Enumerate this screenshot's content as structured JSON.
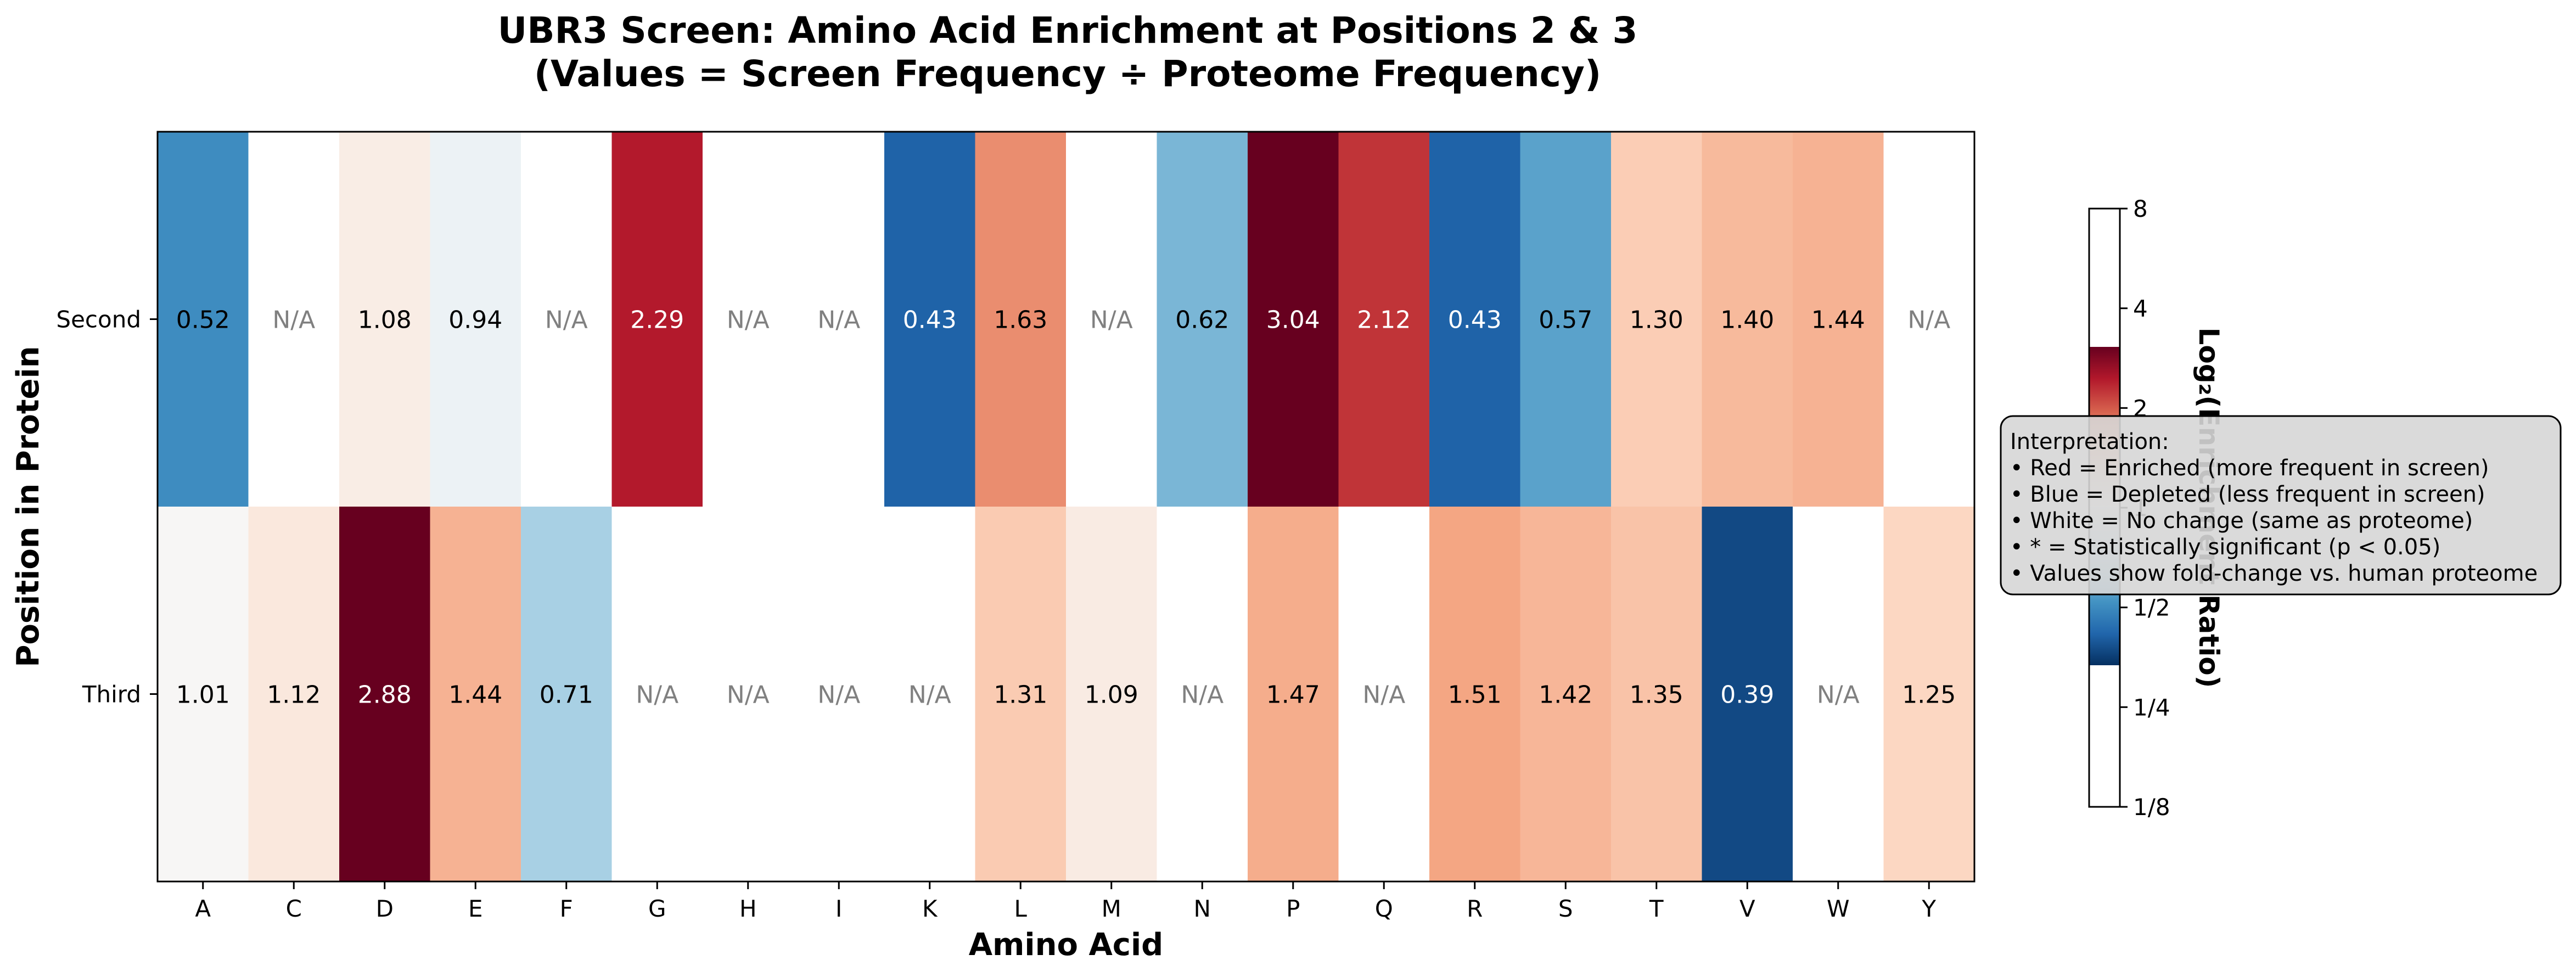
{
  "chart_data": {
    "type": "heatmap",
    "title_lines": [
      "UBR3 Screen: Amino Acid Enrichment at Positions 2 & 3",
      "(Values = Screen Frequency ÷ Proteome Frequency)"
    ],
    "xlabel": "Amino Acid",
    "ylabel": "Position in Protein",
    "columns": [
      "A",
      "C",
      "D",
      "E",
      "F",
      "G",
      "H",
      "I",
      "K",
      "L",
      "M",
      "N",
      "P",
      "Q",
      "R",
      "S",
      "T",
      "V",
      "W",
      "Y"
    ],
    "rows": [
      {
        "label": "Second",
        "values": [
          0.52,
          null,
          1.08,
          0.94,
          null,
          2.29,
          null,
          null,
          0.43,
          1.63,
          null,
          0.62,
          3.04,
          2.12,
          0.43,
          0.57,
          1.3,
          1.4,
          1.44,
          null
        ],
        "labels": [
          "0.52",
          "N/A",
          "1.08",
          "0.94",
          "N/A",
          "2.29",
          "N/A",
          "N/A",
          "0.43",
          "1.63",
          "N/A",
          "0.62",
          "3.04",
          "2.12",
          "0.43",
          "0.57",
          "1.30",
          "1.40",
          "1.44",
          "N/A"
        ]
      },
      {
        "label": "Third",
        "values": [
          1.01,
          1.12,
          2.88,
          1.44,
          0.71,
          null,
          null,
          null,
          null,
          1.31,
          1.09,
          null,
          1.47,
          null,
          1.51,
          1.42,
          1.35,
          0.39,
          null,
          1.25
        ],
        "labels": [
          "1.01",
          "1.12",
          "2.88",
          "1.44",
          "0.71",
          "N/A",
          "N/A",
          "N/A",
          "N/A",
          "1.31",
          "1.09",
          "N/A",
          "1.47",
          "N/A",
          "1.51",
          "1.42",
          "1.35",
          "0.39",
          "N/A",
          "1.25"
        ]
      }
    ],
    "colorbar": {
      "label": "Log₂(Enrichment Ratio)",
      "ticks": [
        "8",
        "4",
        "2",
        "1",
        "1/2",
        "1/4",
        "1/8"
      ],
      "tick_values": [
        8,
        4,
        2,
        1,
        0.5,
        0.25,
        0.125
      ],
      "scale": "log2",
      "colormap": "RdBu_r",
      "range": [
        0.125,
        8
      ],
      "color_min": "#053061",
      "color_mid": "#f7f7f7",
      "color_max": "#67001f"
    },
    "na_color": "#808080",
    "legend_box": {
      "placement": "right",
      "lines": [
        "Interpretation:",
        "• Red = Enriched (more frequent in screen)",
        "• Blue = Depleted (less frequent in screen)",
        "• White = No change (same as proteome)",
        "• * = Statistically significant (p < 0.05)",
        "• Values show fold-change vs. human proteome"
      ]
    }
  }
}
